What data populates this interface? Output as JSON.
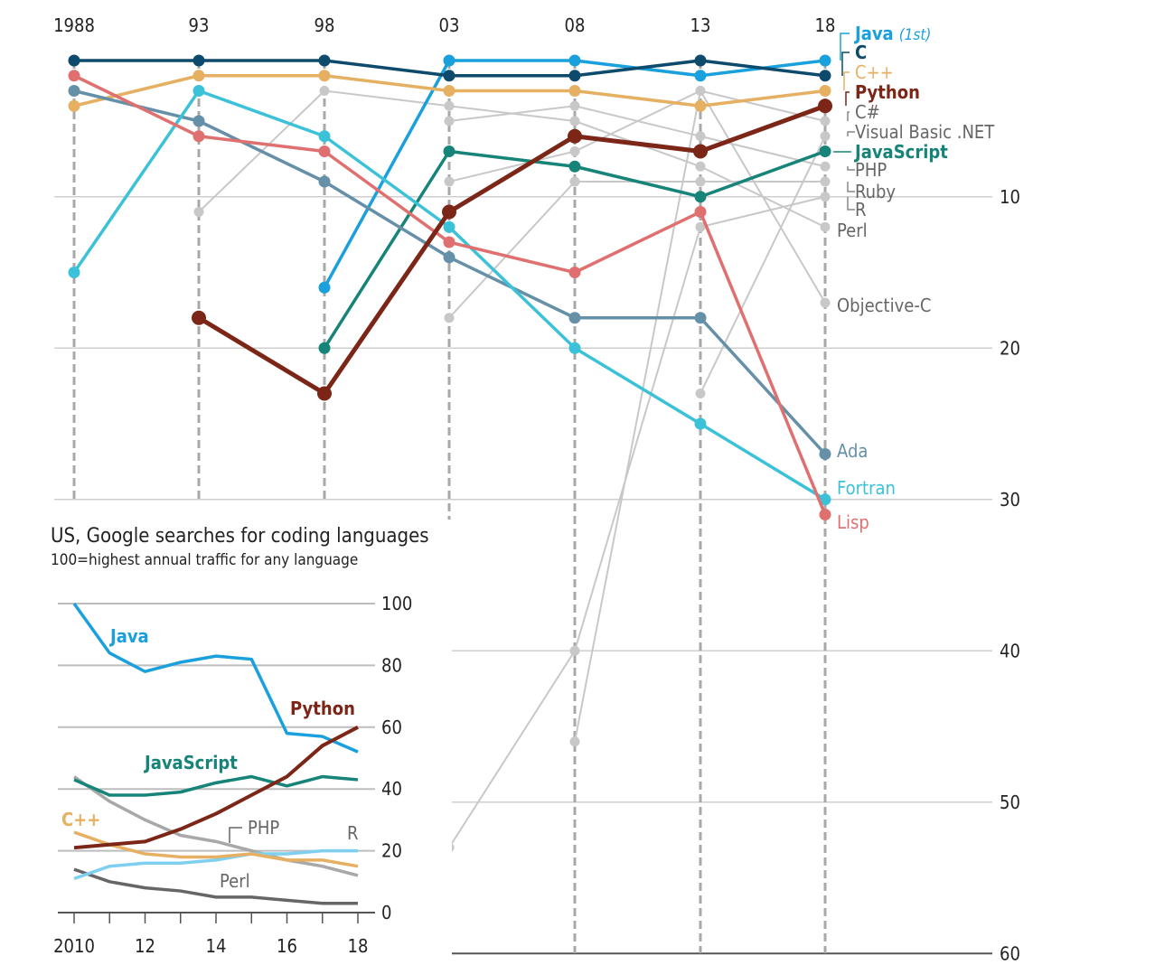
{
  "chart_data": [
    {
      "type": "line",
      "subtype": "rank-chart",
      "x": [
        "1988",
        "93",
        "98",
        "03",
        "08",
        "13",
        "18"
      ],
      "y_ticks": [
        10,
        20,
        30,
        40,
        50,
        60
      ],
      "ylim": [
        0,
        60
      ],
      "y_inverted": true,
      "grid": true,
      "series": [
        {
          "name": "Java",
          "note": "(1st)",
          "color": "#1aa0dc",
          "highlight": true,
          "values": [
            null,
            null,
            16,
            1,
            1,
            2,
            1
          ]
        },
        {
          "name": "C",
          "color": "#0d4a6b",
          "highlight": true,
          "values": [
            1,
            1,
            1,
            2,
            2,
            1,
            2
          ]
        },
        {
          "name": "C++",
          "color": "#e6b063",
          "highlight": true,
          "values": [
            4,
            2,
            2,
            3,
            3,
            4,
            3
          ]
        },
        {
          "name": "Python",
          "color": "#7b2617",
          "highlight": true,
          "bold": true,
          "values": [
            null,
            18,
            23,
            11,
            6,
            7,
            4
          ]
        },
        {
          "name": "C#",
          "color": "#c8c8c8",
          "highlight": false,
          "values": [
            null,
            null,
            null,
            9,
            7,
            3,
            5
          ]
        },
        {
          "name": "Visual Basic .NET",
          "color": "#c8c8c8",
          "highlight": false,
          "values": [
            null,
            null,
            null,
            null,
            null,
            23,
            6
          ]
        },
        {
          "name": "JavaScript",
          "color": "#168478",
          "highlight": true,
          "values": [
            null,
            null,
            20,
            7,
            8,
            10,
            7
          ]
        },
        {
          "name": "PHP",
          "color": "#c8c8c8",
          "highlight": false,
          "values": [
            null,
            null,
            null,
            5,
            4,
            6,
            8
          ]
        },
        {
          "name": "Ruby",
          "color": "#c8c8c8",
          "highlight": false,
          "values": [
            null,
            null,
            null,
            18,
            9,
            9,
            9
          ]
        },
        {
          "name": "R",
          "color": "#c8c8c8",
          "highlight": false,
          "values": [
            null,
            null,
            null,
            53,
            40,
            12,
            10
          ]
        },
        {
          "name": "Perl",
          "color": "#c8c8c8",
          "highlight": false,
          "values": [
            null,
            11,
            3,
            4,
            5,
            8,
            12
          ]
        },
        {
          "name": "Objective-C",
          "color": "#c8c8c8",
          "highlight": false,
          "values": [
            null,
            null,
            null,
            null,
            46,
            3,
            17
          ]
        },
        {
          "name": "Ada",
          "color": "#6590a8",
          "highlight": true,
          "values": [
            3,
            5,
            9,
            14,
            18,
            18,
            27
          ]
        },
        {
          "name": "Fortran",
          "color": "#3cc2d8",
          "highlight": true,
          "values": [
            15,
            3,
            6,
            12,
            20,
            25,
            30
          ]
        },
        {
          "name": "Lisp",
          "color": "#e07070",
          "highlight": true,
          "values": [
            2,
            6,
            7,
            13,
            15,
            11,
            31
          ]
        }
      ]
    },
    {
      "type": "line",
      "title": "US, Google searches for coding languages",
      "subtitle": "100=highest annual traffic for any language",
      "x": [
        2010,
        2011,
        2012,
        2013,
        2014,
        2015,
        2016,
        2017,
        2018
      ],
      "x_tick_labels": [
        "2010",
        "12",
        "14",
        "16",
        "18"
      ],
      "x_tick_values": [
        2010,
        2012,
        2014,
        2016,
        2018
      ],
      "y_ticks": [
        0,
        20,
        40,
        60,
        80,
        100
      ],
      "ylim": [
        0,
        100
      ],
      "grid": true,
      "series": [
        {
          "name": "Java",
          "color": "#1aa0dc",
          "values": [
            100,
            84,
            78,
            81,
            83,
            82,
            58,
            57,
            52
          ]
        },
        {
          "name": "Python",
          "color": "#7b2617",
          "values": [
            21,
            22,
            23,
            27,
            32,
            38,
            44,
            54,
            60
          ]
        },
        {
          "name": "JavaScript",
          "color": "#168478",
          "values": [
            43,
            38,
            38,
            39,
            42,
            44,
            41,
            44,
            43
          ]
        },
        {
          "name": "C++",
          "color": "#e6b063",
          "values": [
            26,
            22,
            19,
            18,
            18,
            19,
            17,
            17,
            15
          ]
        },
        {
          "name": "PHP",
          "color": "#a8a8a8",
          "values": [
            44,
            36,
            30,
            25,
            23,
            20,
            17,
            15,
            12
          ]
        },
        {
          "name": "R",
          "color": "#7fd0f0",
          "values": [
            11,
            15,
            16,
            16,
            17,
            19,
            19,
            20,
            20
          ]
        },
        {
          "name": "Perl",
          "color": "#666666",
          "values": [
            14,
            10,
            8,
            7,
            5,
            5,
            4,
            3,
            3
          ]
        }
      ]
    }
  ]
}
